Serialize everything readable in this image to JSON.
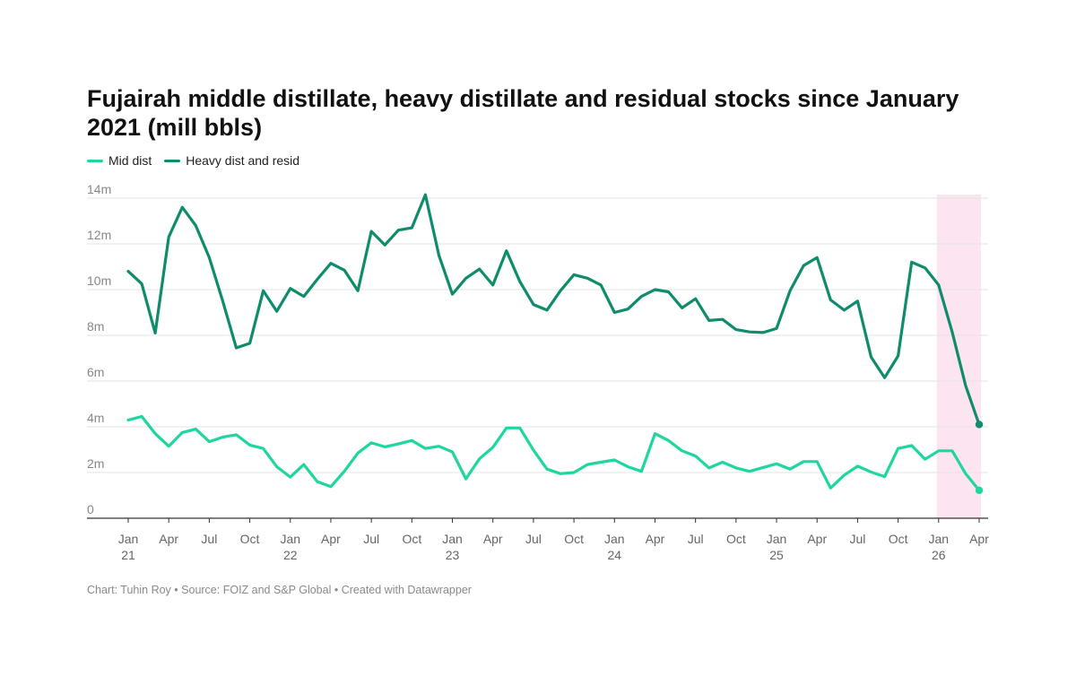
{
  "title": "Fujairah middle distillate, heavy distillate and residual stocks since January 2021 (mill bbls)",
  "footer": {
    "author": "Chart: Tuhin Roy",
    "source": "Source: FOIZ and S&P Global",
    "tool": "Created with Datawrapper",
    "separator": "•"
  },
  "chart_data": {
    "type": "line",
    "x_start": "Jan 2021",
    "x_interval": "month",
    "yticks": [
      0,
      2,
      4,
      6,
      8,
      10,
      12,
      14
    ],
    "ytick_labels": [
      "0",
      "2m",
      "4m",
      "6m",
      "8m",
      "10m",
      "12m",
      "14m"
    ],
    "ylim": [
      0,
      14
    ],
    "xticks": [
      {
        "label": "Jan",
        "year": "21",
        "index": 0
      },
      {
        "label": "Apr",
        "year": "",
        "index": 3
      },
      {
        "label": "Jul",
        "year": "",
        "index": 6
      },
      {
        "label": "Oct",
        "year": "",
        "index": 9
      },
      {
        "label": "Jan",
        "year": "22",
        "index": 12
      },
      {
        "label": "Apr",
        "year": "",
        "index": 15
      },
      {
        "label": "Jul",
        "year": "",
        "index": 18
      },
      {
        "label": "Oct",
        "year": "",
        "index": 21
      },
      {
        "label": "Jan",
        "year": "23",
        "index": 24
      },
      {
        "label": "Apr",
        "year": "",
        "index": 27
      },
      {
        "label": "Jul",
        "year": "",
        "index": 30
      },
      {
        "label": "Oct",
        "year": "",
        "index": 33
      },
      {
        "label": "Jan",
        "year": "24",
        "index": 36
      },
      {
        "label": "Apr",
        "year": "",
        "index": 39
      },
      {
        "label": "Jul",
        "year": "",
        "index": 42
      },
      {
        "label": "Oct",
        "year": "",
        "index": 45
      },
      {
        "label": "Jan",
        "year": "25",
        "index": 48
      },
      {
        "label": "Apr",
        "year": "",
        "index": 51
      },
      {
        "label": "Jul",
        "year": "",
        "index": 54
      },
      {
        "label": "Oct",
        "year": "",
        "index": 57
      },
      {
        "label": "Jan",
        "year": "26",
        "index": 60
      },
      {
        "label": "Apr",
        "year": "",
        "index": 63
      }
    ],
    "highlight_range": [
      60,
      63
    ],
    "grid": true,
    "legend_position": "top-left",
    "series": [
      {
        "name": "Mid dist",
        "color": "#1fd6a0",
        "values": [
          4.3,
          4.45,
          3.7,
          3.15,
          3.75,
          3.9,
          3.35,
          3.55,
          3.65,
          3.2,
          3.05,
          2.25,
          1.8,
          2.35,
          1.6,
          1.38,
          2.05,
          2.85,
          3.3,
          3.12,
          3.25,
          3.4,
          3.05,
          3.15,
          2.9,
          1.72,
          2.6,
          3.1,
          3.95,
          3.95,
          2.98,
          2.15,
          1.95,
          2.0,
          2.35,
          2.45,
          2.55,
          2.25,
          2.05,
          3.7,
          3.4,
          2.95,
          2.72,
          2.2,
          2.45,
          2.2,
          2.05,
          2.22,
          2.38,
          2.15,
          2.48,
          2.48,
          1.32,
          1.88,
          2.28,
          2.02,
          1.82,
          3.05,
          3.18,
          2.58,
          2.95,
          2.95,
          1.95,
          1.22
        ]
      },
      {
        "name": "Heavy dist and resid",
        "color": "#0e8c6c",
        "values": [
          10.8,
          10.25,
          8.1,
          12.3,
          13.6,
          12.8,
          11.4,
          9.5,
          7.45,
          7.65,
          9.95,
          9.05,
          10.05,
          9.7,
          10.45,
          11.15,
          10.85,
          9.95,
          12.55,
          11.95,
          12.6,
          12.7,
          14.15,
          11.5,
          9.8,
          10.5,
          10.9,
          10.2,
          11.7,
          10.35,
          9.35,
          9.1,
          9.95,
          10.65,
          10.5,
          10.2,
          9.0,
          9.15,
          9.7,
          10.0,
          9.9,
          9.2,
          9.6,
          8.65,
          8.7,
          8.25,
          8.15,
          8.12,
          8.3,
          9.95,
          11.05,
          11.4,
          9.55,
          9.1,
          9.5,
          7.05,
          6.15,
          7.1,
          11.2,
          10.95,
          10.2,
          8.15,
          5.8,
          4.1
        ]
      }
    ]
  }
}
